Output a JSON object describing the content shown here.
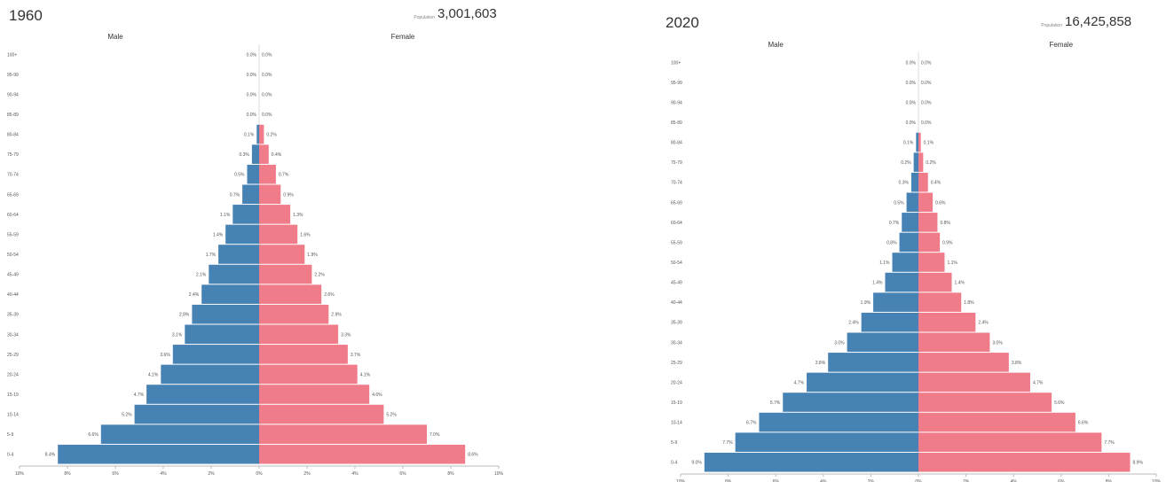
{
  "colors": {
    "male": "#4682b4",
    "female": "#f07c8a",
    "axis": "#bbbbbb",
    "text": "#555555"
  },
  "chart_data": [
    {
      "type": "bar",
      "title": "1960",
      "population_label": "Population",
      "population_value": "3,001,603",
      "male_label": "Male",
      "female_label": "Female",
      "categories": [
        "100+",
        "95-99",
        "90-94",
        "85-89",
        "80-84",
        "75-79",
        "70-74",
        "65-69",
        "60-64",
        "55-59",
        "50-54",
        "45-49",
        "40-44",
        "35-39",
        "30-34",
        "25-29",
        "20-24",
        "15-19",
        "10-14",
        "5-9",
        "0-4"
      ],
      "series": [
        {
          "name": "Male",
          "values": [
            0.0,
            0.0,
            0.0,
            0.0,
            0.1,
            0.3,
            0.5,
            0.7,
            1.1,
            1.4,
            1.7,
            2.1,
            2.4,
            2.8,
            3.1,
            3.6,
            4.1,
            4.7,
            5.2,
            6.6,
            8.4
          ],
          "labels": [
            "0.0%",
            "0.0%",
            "0.0%",
            "0.0%",
            "0.1%",
            "0.3%",
            "0.5%",
            "0.7%",
            "1.1%",
            "1.4%",
            "1.7%",
            "2.1%",
            "2.4%",
            "2.8%",
            "3.1%",
            "3.6%",
            "4.1%",
            "4.7%",
            "5.2%",
            "6.6%",
            "8.4%"
          ]
        },
        {
          "name": "Female",
          "values": [
            0.0,
            0.0,
            0.0,
            0.0,
            0.2,
            0.4,
            0.7,
            0.9,
            1.3,
            1.6,
            1.9,
            2.2,
            2.6,
            2.9,
            3.3,
            3.7,
            4.1,
            4.6,
            5.2,
            7.0,
            8.6
          ],
          "labels": [
            "0.0%",
            "0.0%",
            "0.0%",
            "0.0%",
            "0.2%",
            "0.4%",
            "0.7%",
            "0.9%",
            "1.3%",
            "1.6%",
            "1.9%",
            "2.2%",
            "2.6%",
            "2.9%",
            "3.3%",
            "3.7%",
            "4.1%",
            "4.6%",
            "5.2%",
            "7.0%",
            "8.6%"
          ]
        }
      ],
      "xlim": [
        -10,
        10
      ],
      "x_ticks": [
        "10%",
        "8%",
        "6%",
        "4%",
        "2%",
        "0%",
        "2%",
        "4%",
        "6%",
        "8%",
        "10%"
      ]
    },
    {
      "type": "bar",
      "title": "2020",
      "population_label": "Population",
      "population_value": "16,425,858",
      "male_label": "Male",
      "female_label": "Female",
      "categories": [
        "100+",
        "95-99",
        "90-94",
        "85-89",
        "80-84",
        "75-79",
        "70-74",
        "65-69",
        "60-64",
        "55-59",
        "50-54",
        "45-49",
        "40-44",
        "35-39",
        "30-34",
        "25-29",
        "20-24",
        "15-19",
        "10-14",
        "5-9",
        "0-4"
      ],
      "series": [
        {
          "name": "Male",
          "values": [
            0.0,
            0.0,
            0.0,
            0.0,
            0.1,
            0.2,
            0.3,
            0.5,
            0.7,
            0.8,
            1.1,
            1.4,
            1.9,
            2.4,
            3.0,
            3.8,
            4.7,
            5.7,
            6.7,
            7.7,
            9.0
          ],
          "labels": [
            "0.0%",
            "0.0%",
            "0.0%",
            "0.0%",
            "0.1%",
            "0.2%",
            "0.3%",
            "0.5%",
            "0.7%",
            "0.8%",
            "1.1%",
            "1.4%",
            "1.9%",
            "2.4%",
            "3.0%",
            "3.8%",
            "4.7%",
            "5.7%",
            "6.7%",
            "7.7%",
            "9.0%"
          ]
        },
        {
          "name": "Female",
          "values": [
            0.0,
            0.0,
            0.0,
            0.0,
            0.1,
            0.2,
            0.4,
            0.6,
            0.8,
            0.9,
            1.1,
            1.4,
            1.8,
            2.4,
            3.0,
            3.8,
            4.7,
            5.6,
            6.6,
            7.7,
            8.9
          ],
          "labels": [
            "0.0%",
            "0.0%",
            "0.0%",
            "0.0%",
            "0.1%",
            "0.2%",
            "0.4%",
            "0.6%",
            "0.8%",
            "0.9%",
            "1.1%",
            "1.4%",
            "1.8%",
            "2.4%",
            "3.0%",
            "3.8%",
            "4.7%",
            "5.6%",
            "6.6%",
            "7.7%",
            "8.9%"
          ]
        }
      ],
      "xlim": [
        -10,
        10
      ],
      "x_ticks": [
        "10%",
        "8%",
        "6%",
        "4%",
        "2%",
        "0%",
        "2%",
        "4%",
        "6%",
        "8%",
        "10%"
      ]
    }
  ]
}
